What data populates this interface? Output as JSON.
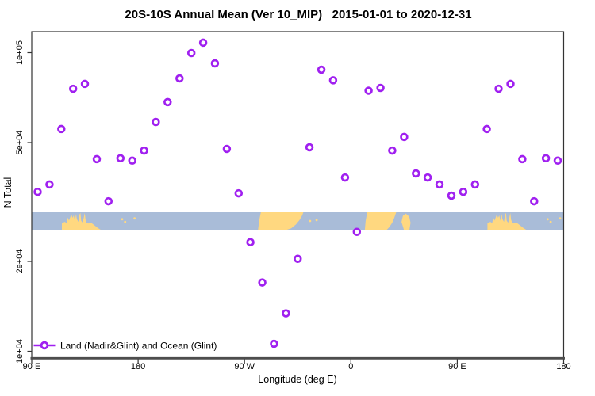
{
  "title": "20S-10S Annual Mean (Ver 10_MIP)   2015-01-01 to 2020-12-31",
  "axes": {
    "y_label": "N Total",
    "x_label": "Longitude (deg E)",
    "y_scale": "log",
    "y_ticks": [
      {
        "value": 10000,
        "label": "1e+04"
      },
      {
        "value": 20000,
        "label": "2e+04"
      },
      {
        "value": 50000,
        "label": "5e+04"
      },
      {
        "value": 100000,
        "label": "1e+05"
      }
    ],
    "x_ticks": [
      {
        "deg": 90,
        "label": "90 E"
      },
      {
        "deg": 180,
        "label": "180"
      },
      {
        "deg": 270,
        "label": "90 W"
      },
      {
        "deg": 360,
        "label": "0"
      },
      {
        "deg": 450,
        "label": "90 E"
      },
      {
        "deg": 540,
        "label": "180"
      }
    ],
    "x_range_deg": [
      90,
      540
    ],
    "y_range": [
      9500,
      118000
    ]
  },
  "legend": {
    "label": "Land (Nadir&Glint) and Ocean (Glint)"
  },
  "colors": {
    "point": "#A020F0",
    "ocean": "#A9BCD8",
    "land": "#FFD880",
    "axis": "#333333",
    "baseline": "#4D4D4D"
  },
  "chart_data": {
    "type": "scatter",
    "title": "20S-10S Annual Mean (Ver 10_MIP)   2015-01-01 to 2020-12-31",
    "xlabel": "Longitude (deg E)",
    "ylabel": "N Total",
    "y_scale": "log",
    "ylim": [
      9500,
      118000
    ],
    "xlim_deg": [
      90,
      540
    ],
    "note": "Longitude axis spans 450 deg (90E eastward to 180); the 90E-175E sector repeats at the right end. Open purple circles, log y axis.",
    "x_deg": [
      95,
      105,
      115,
      125,
      135,
      145,
      155,
      165,
      175,
      185,
      195,
      205,
      215,
      225,
      235,
      245,
      255,
      265,
      275,
      285,
      295,
      305,
      315,
      325,
      335,
      345,
      355,
      365,
      375,
      385,
      395,
      405,
      415,
      425,
      435,
      445,
      455,
      465,
      475,
      485,
      495,
      505,
      515,
      525,
      535
    ],
    "values": [
      34200,
      36200,
      55500,
      75700,
      78600,
      44000,
      31800,
      44300,
      43500,
      47000,
      58600,
      68300,
      82000,
      99700,
      108000,
      92100,
      47600,
      33800,
      23200,
      17000,
      10600,
      13400,
      20400,
      48200,
      87700,
      80800,
      38200,
      25100,
      74600,
      76200,
      47000,
      52200,
      39400,
      38200,
      36200,
      33200,
      34200,
      36200,
      55500,
      75700,
      78600,
      44000,
      31800,
      44300,
      43500
    ]
  },
  "map_band": {
    "description": "20S-10S latitude strip world map: ocean blue, land yellow",
    "land_polygons": [
      {
        "name": "australia",
        "pts": [
          [
            115.5,
            1
          ],
          [
            115.5,
            0.62
          ],
          [
            118,
            0.55
          ],
          [
            119.5,
            0.62
          ],
          [
            120.5,
            0.3
          ],
          [
            121.5,
            0.48
          ],
          [
            122.5,
            0.3
          ],
          [
            123.5,
            0.12
          ],
          [
            124.5,
            0.32
          ],
          [
            125.5,
            0.18
          ],
          [
            126.5,
            0.48
          ],
          [
            127.5,
            0.1
          ],
          [
            128.2,
            0.4
          ],
          [
            129.5,
            0.55
          ],
          [
            130.5,
            0.12
          ],
          [
            131.2,
            0.04
          ],
          [
            131.8,
            0.48
          ],
          [
            133,
            0.6
          ],
          [
            134,
            0.32
          ],
          [
            134.8,
            0.04
          ],
          [
            135.5,
            0.42
          ],
          [
            136.5,
            0.62
          ],
          [
            138,
            0.64
          ],
          [
            139.5,
            0.58
          ],
          [
            141,
            0.64
          ],
          [
            142.5,
            0.72
          ],
          [
            144,
            0.8
          ],
          [
            145.5,
            0.88
          ],
          [
            147,
            0.95
          ],
          [
            148.3,
            1
          ]
        ]
      },
      {
        "name": "south-america",
        "pts": [
          [
            281.5,
            1
          ],
          [
            282.5,
            0.45
          ],
          [
            283.8,
            0
          ],
          [
            319.8,
            0
          ],
          [
            318.5,
            0.22
          ],
          [
            316.5,
            0.45
          ],
          [
            313.5,
            0.7
          ],
          [
            309.5,
            0.92
          ],
          [
            306,
            1
          ]
        ]
      },
      {
        "name": "africa",
        "pts": [
          [
            371.8,
            1
          ],
          [
            372.5,
            0.5
          ],
          [
            373.8,
            0
          ],
          [
            398.3,
            0
          ],
          [
            396.5,
            0.35
          ],
          [
            395,
            0.6
          ],
          [
            392.5,
            0.85
          ],
          [
            390.5,
            1
          ]
        ]
      },
      {
        "name": "madagascar",
        "pts": [
          [
            402.8,
            0.55
          ],
          [
            404,
            0.2
          ],
          [
            406.5,
            0.08
          ],
          [
            409.3,
            0.25
          ],
          [
            410.5,
            0.6
          ],
          [
            409.5,
            1
          ],
          [
            404.8,
            1
          ]
        ]
      },
      {
        "name": "australia-repeat",
        "pts": [
          [
            475.5,
            1
          ],
          [
            475.5,
            0.62
          ],
          [
            478,
            0.55
          ],
          [
            479.5,
            0.62
          ],
          [
            480.5,
            0.3
          ],
          [
            481.5,
            0.48
          ],
          [
            482.5,
            0.3
          ],
          [
            483.5,
            0.12
          ],
          [
            484.5,
            0.32
          ],
          [
            485.5,
            0.18
          ],
          [
            486.5,
            0.48
          ],
          [
            487.5,
            0.1
          ],
          [
            488.2,
            0.4
          ],
          [
            489.5,
            0.55
          ],
          [
            490.5,
            0.12
          ],
          [
            491.2,
            0.04
          ],
          [
            491.8,
            0.48
          ],
          [
            493,
            0.6
          ],
          [
            494,
            0.32
          ],
          [
            494.8,
            0.04
          ],
          [
            495.5,
            0.42
          ],
          [
            496.5,
            0.62
          ],
          [
            498,
            0.64
          ],
          [
            499.5,
            0.58
          ],
          [
            501,
            0.64
          ],
          [
            502.5,
            0.72
          ],
          [
            504,
            0.8
          ],
          [
            505.5,
            0.88
          ],
          [
            507,
            0.95
          ],
          [
            508.3,
            1
          ]
        ]
      }
    ],
    "islands": [
      {
        "lon": 166.5,
        "t": 0.4
      },
      {
        "lon": 169,
        "t": 0.55
      },
      {
        "lon": 177,
        "t": 0.35
      },
      {
        "lon": 325.5,
        "t": 0.5
      },
      {
        "lon": 331,
        "t": 0.45
      },
      {
        "lon": 526.5,
        "t": 0.4
      },
      {
        "lon": 529,
        "t": 0.55
      },
      {
        "lon": 537,
        "t": 0.35
      }
    ]
  }
}
